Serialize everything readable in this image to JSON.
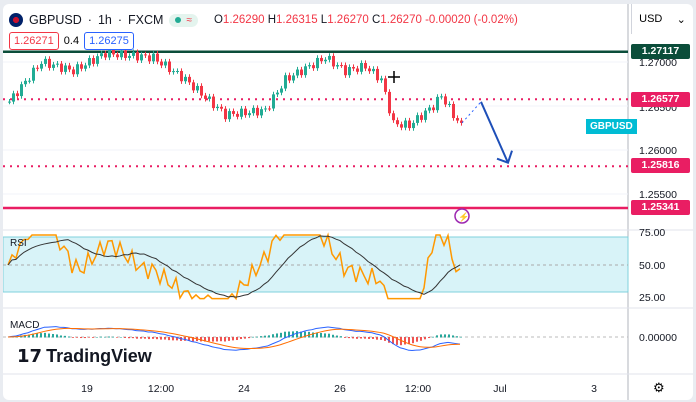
{
  "header": {
    "symbol": "GBPUSD",
    "interval": "1h",
    "exchange": "FXCM",
    "sep": "·",
    "open_label": "O",
    "open": "1.26290",
    "high_label": "H",
    "high": "1.26315",
    "low_label": "L",
    "low": "1.26270",
    "close_label": "C",
    "close": "1.26270",
    "change": "-0.00020 (-0.02%)",
    "currency": "USD"
  },
  "order": {
    "sell": "1.26271",
    "spread": "0.4",
    "buy": "1.26275"
  },
  "levels": [
    {
      "price": "1.27117",
      "color": "#0b4d3a",
      "style": "solid"
    },
    {
      "price": "1.26577",
      "color": "#e91e63",
      "style": "dotted"
    },
    {
      "price": "1.25816",
      "color": "#e91e63",
      "style": "dotted"
    },
    {
      "price": "1.25341",
      "color": "#e91e63",
      "style": "solid"
    }
  ],
  "symbol_tag": "GBPUSD",
  "price_axis": [
    "1.27000",
    "1.26500",
    "1.26000",
    "1.25500"
  ],
  "rsi": {
    "label": "RSI",
    "axis": [
      "75.00",
      "50.00",
      "25.00"
    ]
  },
  "macd": {
    "label": "MACD",
    "axis": [
      "0.00000"
    ]
  },
  "time_axis": [
    "19",
    "12:00",
    "24",
    "26",
    "12:00",
    "Jul",
    "3"
  ],
  "logo": "TradingView",
  "chart_data": {
    "type": "candlestick",
    "symbol": "GBPUSD",
    "interval": "1h",
    "close_keypoints": [
      [
        0,
        1.2655
      ],
      [
        8,
        1.27
      ],
      [
        16,
        1.269
      ],
      [
        24,
        1.271
      ],
      [
        36,
        1.2705
      ],
      [
        44,
        1.268
      ],
      [
        54,
        1.264
      ],
      [
        64,
        1.2645
      ],
      [
        69,
        1.268
      ],
      [
        79,
        1.2705
      ],
      [
        84,
        1.269
      ],
      [
        89,
        1.2695
      ],
      [
        93,
        1.268
      ],
      [
        96,
        1.263
      ],
      [
        100,
        1.2628
      ],
      [
        106,
        1.265
      ],
      [
        108,
        1.2662
      ],
      [
        111,
        1.264
      ],
      [
        113,
        1.2627
      ]
    ],
    "forecast_arrow": {
      "from": 1.2657,
      "to": 1.2581
    },
    "colors": {
      "up": "#22ab94",
      "down": "#f23645"
    }
  }
}
